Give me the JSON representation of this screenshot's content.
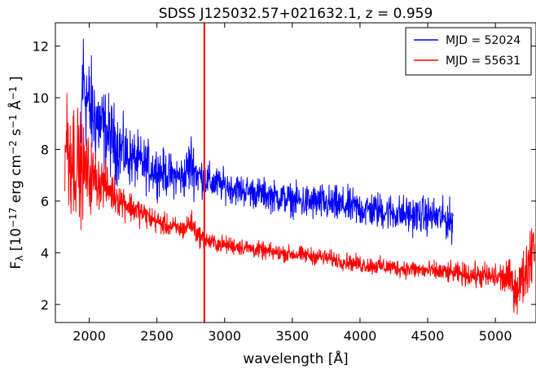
{
  "chart_data": {
    "type": "line",
    "title": "SDSS J125032.57+021632.1, z = 0.959",
    "xlabel": "wavelength [Å]",
    "ylabel": "F_λ [10^-17 erg cm^-2 s^-1 Å^-1]",
    "xlim": [
      1750,
      5300
    ],
    "ylim": [
      1.3,
      12.9
    ],
    "xticks": [
      2000,
      2500,
      3000,
      3500,
      4000,
      4500,
      5000
    ],
    "yticks": [
      2,
      4,
      6,
      8,
      10,
      12
    ],
    "grid": false,
    "legend_position": "top-right",
    "vline": {
      "x": 2850,
      "color": "#ff0000"
    },
    "series": [
      {
        "name": "MJD = 52024",
        "color": "#0000ff",
        "x": [
          1930,
          1950,
          1975,
          2000,
          2050,
          2100,
          2150,
          2200,
          2250,
          2300,
          2400,
          2500,
          2600,
          2700,
          2750,
          2800,
          2850,
          2900,
          3000,
          3100,
          3200,
          3300,
          3400,
          3500,
          3600,
          3700,
          3800,
          3900,
          4000,
          4100,
          4200,
          4300,
          4400,
          4500,
          4600,
          4690
        ],
        "values": [
          6.2,
          10.8,
          10.2,
          9.6,
          9.2,
          8.8,
          8.5,
          8.2,
          7.9,
          7.7,
          7.4,
          7.2,
          7.0,
          6.9,
          7.5,
          7.0,
          6.9,
          6.7,
          6.6,
          6.45,
          6.35,
          6.25,
          6.15,
          6.05,
          5.95,
          5.95,
          5.85,
          5.8,
          5.7,
          5.65,
          5.6,
          5.5,
          5.45,
          5.45,
          5.35,
          5.2
        ],
        "noise": [
          0.5,
          1.2,
          1.1,
          1.0,
          0.9,
          0.8,
          0.75,
          0.7,
          0.6,
          0.55,
          0.5,
          0.45,
          0.4,
          0.4,
          0.6,
          0.4,
          0.35,
          0.35,
          0.3,
          0.3,
          0.3,
          0.3,
          0.3,
          0.3,
          0.35,
          0.35,
          0.35,
          0.35,
          0.35,
          0.35,
          0.35,
          0.35,
          0.35,
          0.35,
          0.35,
          0.4
        ]
      },
      {
        "name": "MJD = 55631",
        "color": "#ff0000",
        "x": [
          1820,
          1850,
          1900,
          1950,
          2000,
          2100,
          2200,
          2300,
          2400,
          2500,
          2600,
          2700,
          2750,
          2800,
          2850,
          2900,
          3000,
          3100,
          3200,
          3300,
          3400,
          3500,
          3600,
          3700,
          3800,
          3900,
          4000,
          4100,
          4200,
          4300,
          4400,
          4500,
          4600,
          4700,
          4800,
          4900,
          5000,
          5100,
          5150,
          5200,
          5250,
          5290
        ],
        "values": [
          8.5,
          8.0,
          7.6,
          7.2,
          7.0,
          6.7,
          6.2,
          5.8,
          5.5,
          5.2,
          5.0,
          4.9,
          5.2,
          4.7,
          4.5,
          4.4,
          4.3,
          4.25,
          4.15,
          4.05,
          4.0,
          3.95,
          3.9,
          3.85,
          3.75,
          3.65,
          3.55,
          3.5,
          3.45,
          3.4,
          3.35,
          3.3,
          3.25,
          3.2,
          3.15,
          3.1,
          3.05,
          3.0,
          2.6,
          2.9,
          3.8,
          4.6
        ],
        "noise": [
          1.4,
          1.3,
          1.1,
          0.9,
          0.7,
          0.45,
          0.35,
          0.3,
          0.25,
          0.22,
          0.2,
          0.2,
          0.25,
          0.2,
          0.18,
          0.17,
          0.17,
          0.17,
          0.16,
          0.16,
          0.16,
          0.16,
          0.16,
          0.16,
          0.16,
          0.16,
          0.17,
          0.17,
          0.17,
          0.17,
          0.18,
          0.18,
          0.2,
          0.2,
          0.22,
          0.25,
          0.28,
          0.35,
          0.45,
          0.5,
          0.6,
          0.7
        ]
      }
    ]
  }
}
